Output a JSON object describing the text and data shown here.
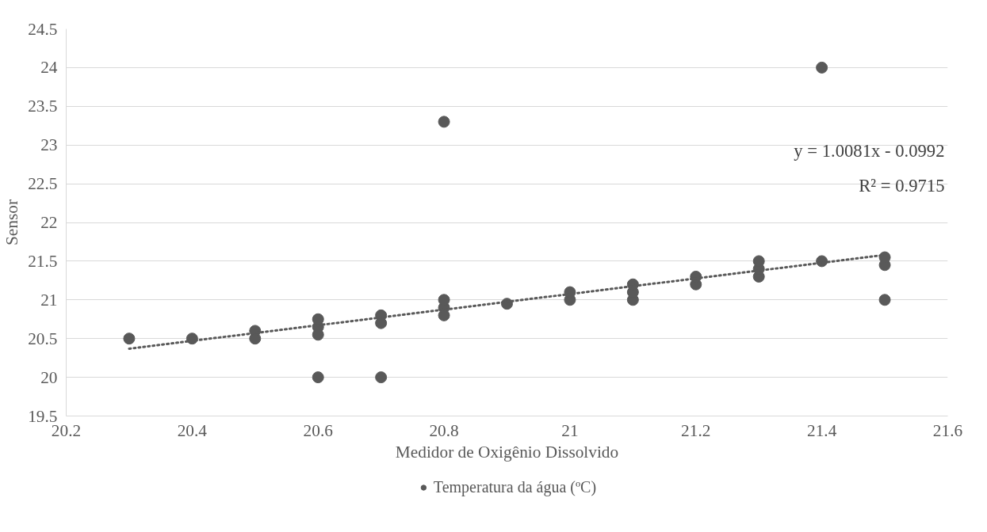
{
  "chart_data": {
    "type": "scatter",
    "xlabel": "Medidor de Oxigênio Dissolvido",
    "ylabel": "Sensor",
    "series": [
      {
        "name": "Temperatura da água (ºC)",
        "color": "#595959",
        "marker": "circle",
        "x": [
          20.3,
          20.4,
          20.5,
          20.5,
          20.6,
          20.6,
          20.6,
          20.6,
          20.7,
          20.7,
          20.7,
          20.8,
          20.8,
          20.8,
          20.8,
          20.9,
          21.0,
          21.0,
          21.1,
          21.1,
          21.1,
          21.2,
          21.2,
          21.3,
          21.3,
          21.3,
          21.4,
          21.4,
          21.5,
          21.5,
          21.5
        ],
        "values": [
          20.5,
          20.5,
          20.5,
          20.6,
          20.55,
          20.65,
          20.75,
          20.0,
          20.7,
          20.8,
          20.0,
          20.8,
          20.9,
          21.0,
          23.3,
          20.95,
          21.0,
          21.1,
          21.0,
          21.1,
          21.2,
          21.2,
          21.3,
          21.3,
          21.4,
          21.5,
          21.5,
          24.0,
          21.45,
          21.55,
          21.0
        ]
      },
      {
        "type": "line",
        "color": "#595959",
        "line_style": "dotted",
        "marker": "none",
        "x": [
          20.3,
          21.5
        ],
        "values": [
          20.37,
          21.58
        ]
      }
    ],
    "annotations": [
      "y = 1.0081x - 0.0992",
      "R² = 0.9715"
    ],
    "xlim": [
      20.2,
      21.6
    ],
    "xticks": [
      20.2,
      20.4,
      20.6,
      20.8,
      21,
      21.2,
      21.4,
      21.6
    ],
    "ylim": [
      19.5,
      24.5
    ],
    "yticks": [
      19.5,
      20,
      20.5,
      21,
      21.5,
      22,
      22.5,
      23,
      23.5,
      24,
      24.5
    ],
    "grid": "y",
    "legend": "bottom"
  }
}
